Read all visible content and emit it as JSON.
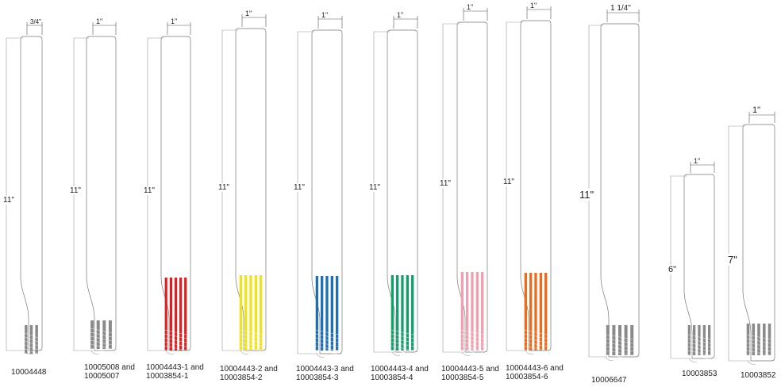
{
  "bands": [
    {
      "part": "10004448",
      "width": "3/4\"",
      "length": "11\"",
      "stripe_color": "#8a8a8a",
      "tall_stripes": false,
      "stripe_count": 3
    },
    {
      "part": "10005008 and 10005007",
      "width": "1\"",
      "length": "11\"",
      "stripe_color": "#8a8a8a",
      "tall_stripes": false,
      "stripe_count": 4
    },
    {
      "part": "10004443-1 and 10003854-1",
      "width": "1\"",
      "length": "11\"",
      "stripe_color": "#e02020",
      "tall_stripes": true,
      "stripe_count": 5
    },
    {
      "part": "10004443-2 and 10003854-2",
      "width": "1\"",
      "length": "11\"",
      "stripe_color": "#f3e21a",
      "tall_stripes": true,
      "stripe_count": 5
    },
    {
      "part": "10004443-3 and 10003854-3",
      "width": "1\"",
      "length": "11\"",
      "stripe_color": "#1f6fb5",
      "tall_stripes": true,
      "stripe_count": 5
    },
    {
      "part": "10004443-4 and 10003854-4",
      "width": "1\"",
      "length": "11\"",
      "stripe_color": "#11a06a",
      "tall_stripes": true,
      "stripe_count": 5
    },
    {
      "part": "10004443-5 and 10003854-5",
      "width": "1\"",
      "length": "11\"",
      "stripe_color": "#f0a0b0",
      "tall_stripes": true,
      "stripe_count": 5
    },
    {
      "part": "10004443-6 and 10003854-6",
      "width": "1\"",
      "length": "11\"",
      "stripe_color": "#ee6a1c",
      "tall_stripes": true,
      "stripe_count": 5
    },
    {
      "part": "10006647",
      "width": "1 1/4\"",
      "length": "11\"",
      "stripe_color": "#8a8a8a",
      "tall_stripes": false,
      "stripe_count": 5
    },
    {
      "part": "10003853",
      "width": "1\"",
      "length": "6\"",
      "stripe_color": "#8a8a8a",
      "tall_stripes": false,
      "stripe_count": 5
    },
    {
      "part": "10003852",
      "width": "1\"",
      "length": "7\"",
      "stripe_color": "#8a8a8a",
      "tall_stripes": false,
      "stripe_count": 5
    }
  ]
}
